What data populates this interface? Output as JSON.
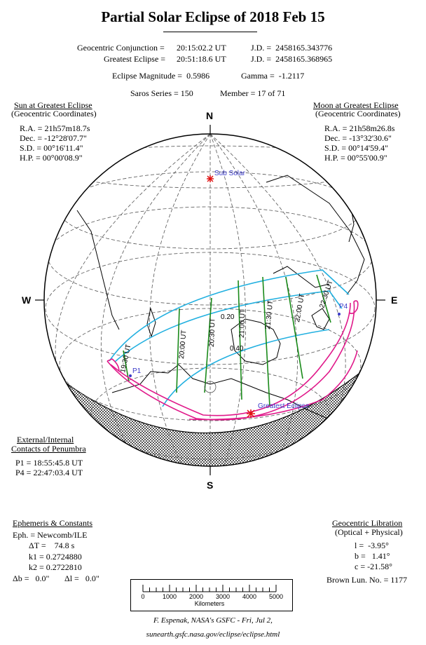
{
  "title": "Partial Solar Eclipse of  2018 Feb 15",
  "header": {
    "conj_label": "Geocentric Conjunction = ",
    "conj_time": "20:15:02.2 UT",
    "conj_jd": "J.D. =  2458165.343776",
    "ge_label": "Greatest Eclipse = ",
    "ge_time": "20:51:18.6 UT",
    "ge_jd": "J.D. =  2458165.368965",
    "magnitude": "Eclipse Magnitude =  0.5986",
    "gamma": "Gamma =  -1.2117",
    "saros": "Saros Series = 150",
    "member": "Member = 17 of 71"
  },
  "sun": {
    "heading": "Sun at Greatest Eclipse",
    "sub": "(Geocentric Coordinates)",
    "ra": "R.A. = 21h57m18.7s",
    "dec": "Dec. = -12°28'07.7\"",
    "sd": "S.D. = 00°16'11.4\"",
    "hp": "H.P. = 00°00'08.9\""
  },
  "moon": {
    "heading": "Moon at Greatest Eclipse",
    "sub": "(Geocentric Coordinates)",
    "ra": "R.A. = 21h58m26.8s",
    "dec": "Dec. = -13°32'30.6\"",
    "sd": "S.D. = 00°14'59.4\"",
    "hp": "H.P. = 00°55'00.9\""
  },
  "compass": {
    "n": "N",
    "s": "S",
    "w": "W",
    "e": "E"
  },
  "map_labels": {
    "sub_solar": "Sub Solar",
    "greatest": "Greatest Eclipse",
    "p1": "P1",
    "p4": "P4",
    "mag_20": "0.20",
    "mag_40": "0.40",
    "t1930": "19:30 UT",
    "t2000": "20:00 UT",
    "t2030": "20:30 UT",
    "t2100": "21:00 UT",
    "t2130": "21:30 UT",
    "t2200": "22:00 UT",
    "t2230": "22:30 UT"
  },
  "contacts": {
    "heading1": "External/Internal",
    "heading2": "Contacts of Penumbra",
    "p1": "P1 = 18:55:45.8 UT",
    "p4": "P4 = 22:47:03.4 UT"
  },
  "ephemeris": {
    "heading": "Ephemeris & Constants",
    "eph": "Eph. = Newcomb/ILE",
    "dt": "ΔT =    74.8 s",
    "k1": "k1 = 0.2724880",
    "k2": "k2 = 0.2722810",
    "db": "Δb =   0.0\"",
    "dl": "Δl =   0.0\""
  },
  "libration": {
    "heading": "Geocentric Libration",
    "sub": "(Optical + Physical)",
    "l": "l =  -3.95°",
    "b": "b =   1.41°",
    "c": "c = -21.58°",
    "brown": "Brown Lun. No. = 1177"
  },
  "scale": {
    "ticks": [
      "0",
      "1000",
      "2000",
      "3000",
      "4000",
      "5000"
    ],
    "unit": "Kilometers"
  },
  "credit": {
    "line1": "F. Espenak, NASA's GSFC - Fri, Jul 2,",
    "line2": "sunearth.gsfc.nasa.gov/eclipse/eclipse.html"
  },
  "colors": {
    "limit_line": "#22b0e0",
    "time_line": "#1a8a1a",
    "penumbra_edge": "#e0198a",
    "sub_solar_marker": "#e01010",
    "label_blue": "#3838c8",
    "night_fill": "#9a9a9a"
  }
}
